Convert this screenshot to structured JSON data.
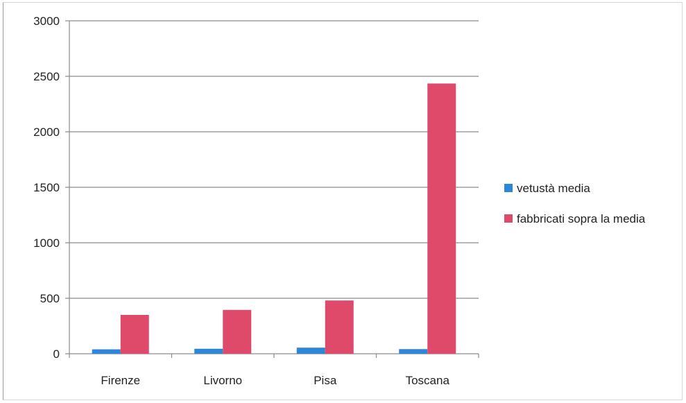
{
  "chart_data": {
    "type": "bar",
    "categories": [
      "Firenze",
      "Livorno",
      "Pisa",
      "Toscana"
    ],
    "series": [
      {
        "name": "vetustà media",
        "values": [
          40,
          45,
          55,
          42
        ],
        "color": "#2e86d9"
      },
      {
        "name": "fabbricati sopra la media",
        "values": [
          350,
          395,
          480,
          2435
        ],
        "color": "#e04a6a"
      }
    ],
    "ylim": [
      0,
      3000
    ],
    "yticks": [
      "0",
      "500",
      "1000",
      "1500",
      "2000",
      "2500",
      "3000"
    ],
    "grid": true,
    "legend_position": "right"
  }
}
